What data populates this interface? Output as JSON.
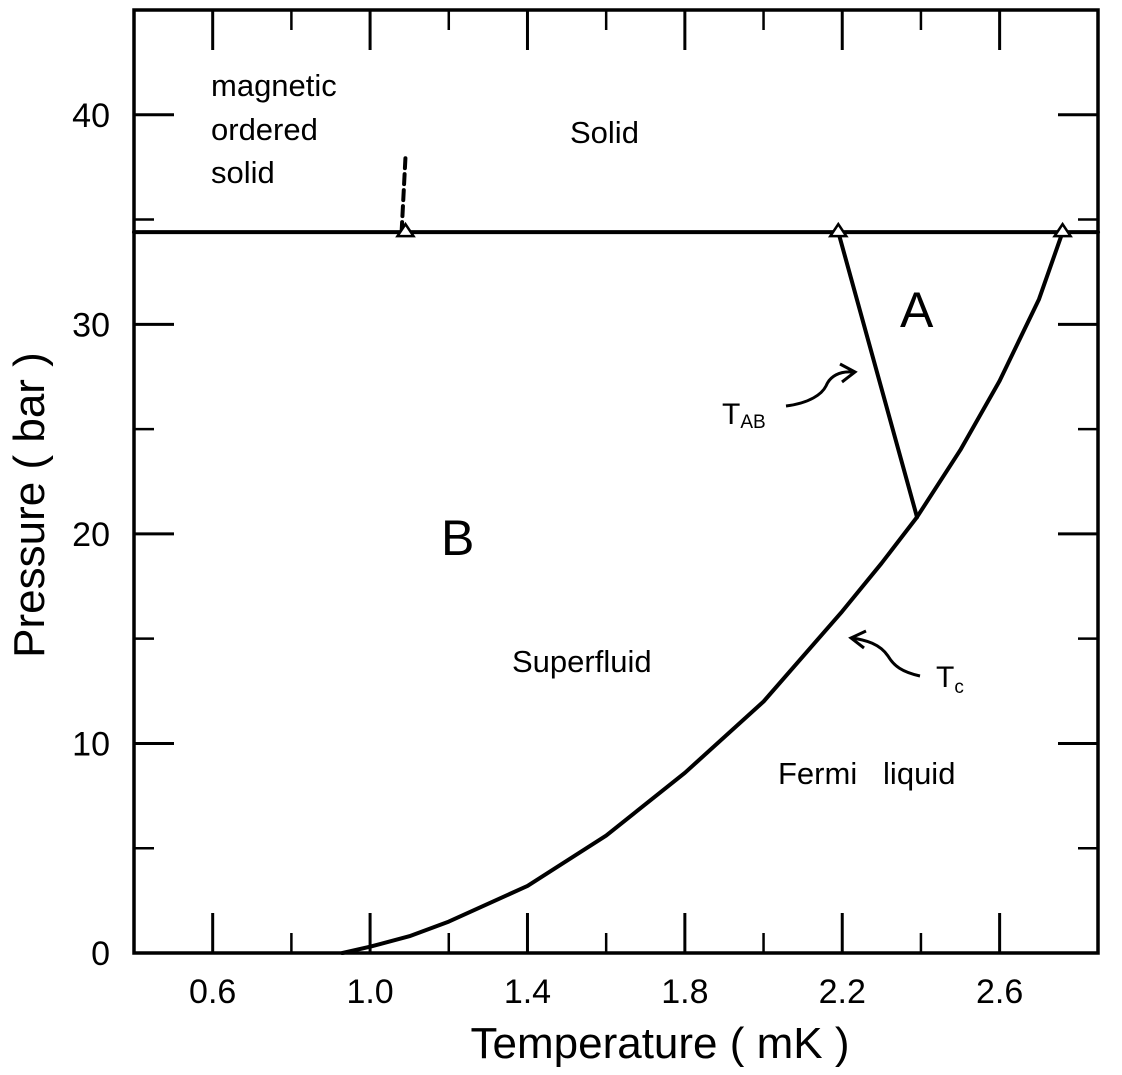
{
  "chart_data": {
    "type": "line",
    "title": "",
    "xlabel": "Temperature  ( mK )",
    "ylabel": "Pressure  ( bar )",
    "xlim": [
      0.4,
      2.85
    ],
    "ylim": [
      0,
      45
    ],
    "x_ticks": [
      "0.6",
      "1.0",
      "1.4",
      "1.8",
      "2.2",
      "2.6"
    ],
    "x_tick_values": [
      0.6,
      1.0,
      1.4,
      1.8,
      2.2,
      2.6
    ],
    "y_ticks": [
      "0",
      "10",
      "20",
      "30",
      "40"
    ],
    "y_tick_values": [
      0,
      10,
      20,
      30,
      40
    ],
    "grid": false,
    "series": [
      {
        "role": "solidification-line",
        "x": [
          0.4,
          2.85
        ],
        "y": [
          34.4,
          34.4
        ]
      },
      {
        "role": "Tc",
        "x": [
          0.93,
          1.0,
          1.1,
          1.2,
          1.4,
          1.6,
          1.8,
          2.0,
          2.2,
          2.3,
          2.39,
          2.5,
          2.6,
          2.7,
          2.76
        ],
        "y": [
          0,
          0.3,
          0.8,
          1.5,
          3.2,
          5.6,
          8.6,
          12.0,
          16.3,
          18.6,
          20.8,
          24.0,
          27.3,
          31.2,
          34.4
        ]
      },
      {
        "role": "TAB",
        "x": [
          2.19,
          2.39
        ],
        "y": [
          34.4,
          20.8
        ]
      },
      {
        "role": "magnetic-ordering",
        "x": [
          1.08,
          1.09
        ],
        "y": [
          34.4,
          38.0
        ]
      }
    ],
    "markers": [
      {
        "x": 1.09,
        "y": 34.4
      },
      {
        "x": 2.19,
        "y": 34.4
      },
      {
        "x": 2.76,
        "y": 34.4
      }
    ],
    "annotations": {
      "magnetic_line1": "magnetic",
      "magnetic_line2": "ordered",
      "magnetic_line3": "solid",
      "solid": "Solid",
      "phase_a": "A",
      "phase_b": "B",
      "superfluid": "Superfluid",
      "fermi_liquid": "Fermi   liquid",
      "tab_main": "T",
      "tab_sub": "AB",
      "tc_main": "T",
      "tc_sub": "c"
    }
  }
}
